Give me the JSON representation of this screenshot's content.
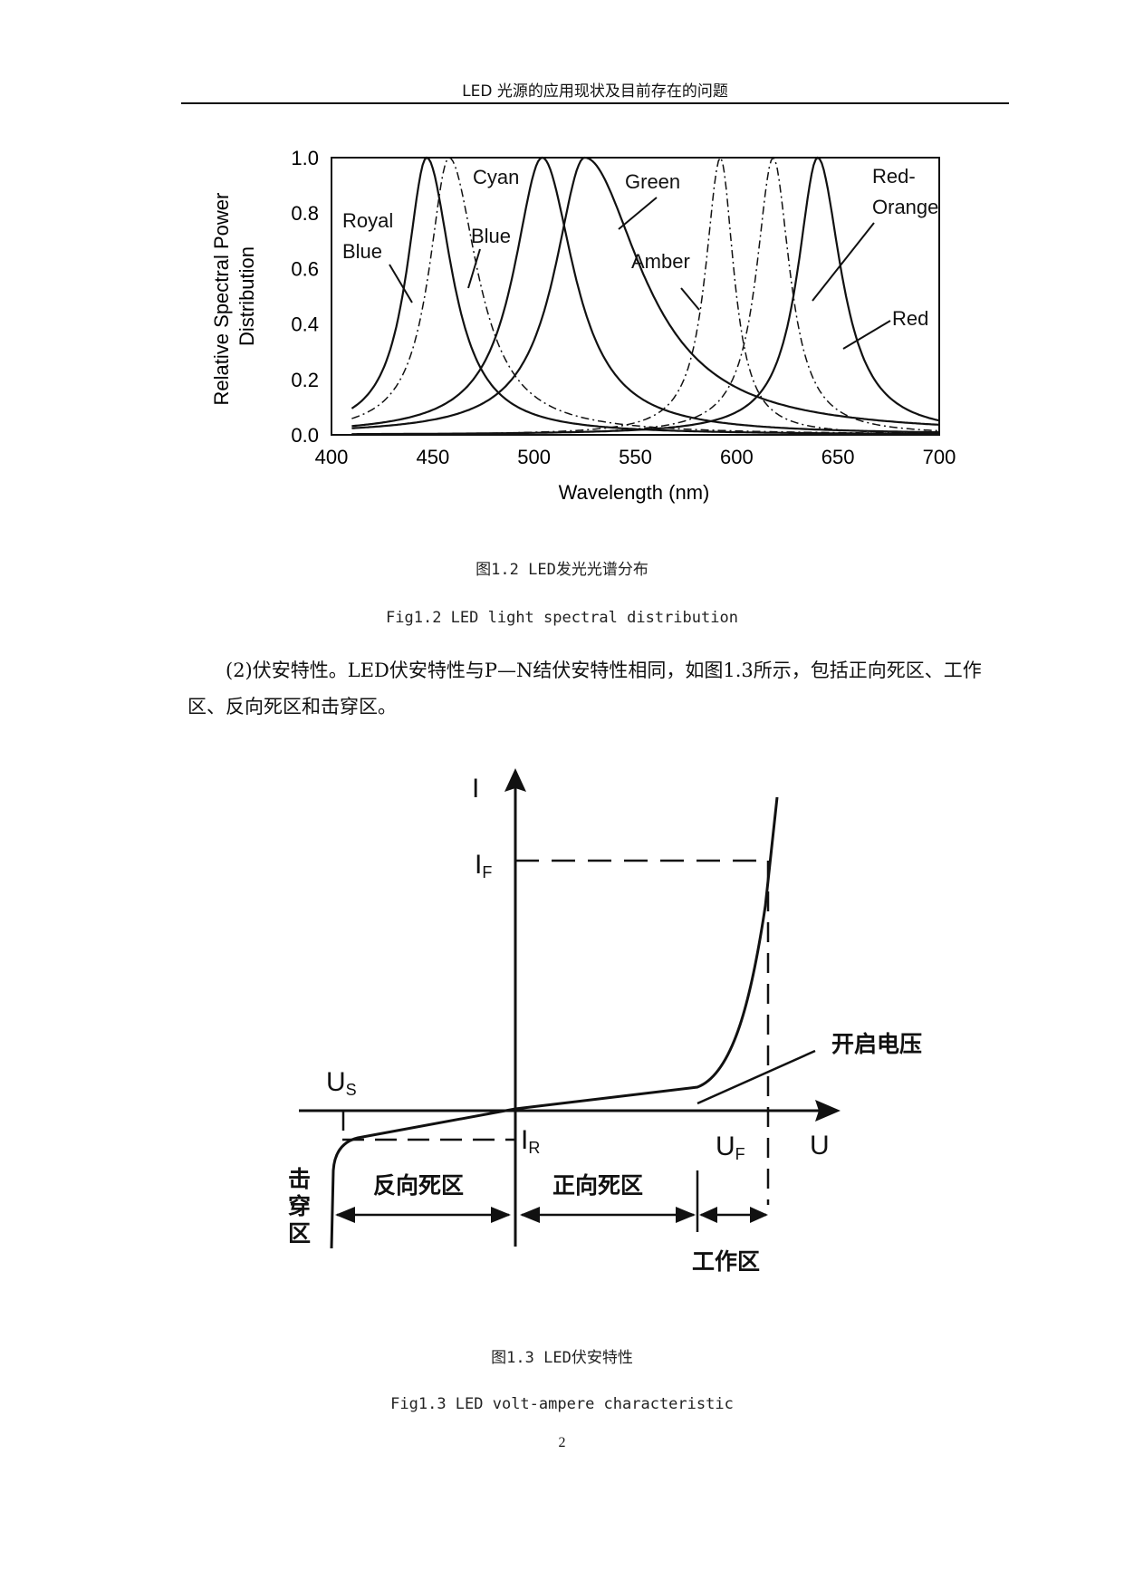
{
  "header": {
    "title": "LED 光源的应用现状及目前存在的问题"
  },
  "figure1": {
    "caption_cn": "图1.2 LED发光光谱分布",
    "caption_en": "Fig1.2 LED light spectral distribution"
  },
  "chart_data": {
    "type": "line",
    "ylabel": "Relative Spectral Power Distribution",
    "xlabel": "Wavelength (nm)",
    "xlim": [
      400,
      700
    ],
    "ylim": [
      0,
      1
    ],
    "x_ticks": [
      "400",
      "450",
      "500",
      "550",
      "600",
      "650",
      "700"
    ],
    "y_ticks": [
      "0.0",
      "0.2",
      "0.4",
      "0.6",
      "0.8",
      "1.0"
    ],
    "series": [
      {
        "name": "Royal Blue",
        "peak": 447,
        "hw_left": 12,
        "hw_right": 15,
        "style": "solid"
      },
      {
        "name": "Blue",
        "peak": 458,
        "hw_left": 12,
        "hw_right": 17,
        "style": "dashdot"
      },
      {
        "name": "Cyan",
        "peak": 504,
        "hw_left": 17,
        "hw_right": 19,
        "style": "solid"
      },
      {
        "name": "Green",
        "peak": 525,
        "hw_left": 18,
        "hw_right": 34,
        "style": "solid"
      },
      {
        "name": "Amber",
        "peak": 592,
        "hw_left": 9,
        "hw_right": 8,
        "style": "dashdot"
      },
      {
        "name": "Red-Orange",
        "peak": 618,
        "hw_left": 10,
        "hw_right": 10,
        "style": "dashdot"
      },
      {
        "name": "Red",
        "peak": 640,
        "hw_left": 12,
        "hw_right": 14,
        "style": "solid"
      }
    ],
    "labels": [
      "Royal\nBlue",
      "Blue",
      "Cyan",
      "Green",
      "Amber",
      "Red-\nOrange",
      "Red"
    ]
  },
  "paragraph": "(2)伏安特性。LED伏安特性与P—N结伏安特性相同，如图1.3所示，包括正向死区、工作区、反向死区和击穿区。",
  "figure2": {
    "axis_i": "I",
    "axis_u": "U",
    "i_f": "I",
    "i_f_sub": "F",
    "u_s": "U",
    "u_s_sub": "S",
    "i_r": "I",
    "i_r_sub": "R",
    "u_f": "U",
    "u_f_sub": "F",
    "turn_on_voltage": "开启电压",
    "reverse_dead_zone": "反向死区",
    "forward_dead_zone": "正向死区",
    "breakdown_zone": "击穿区",
    "working_zone": "工作区",
    "caption_cn": "图1.3 LED伏安特性",
    "caption_en": "Fig1.3 LED volt-ampere characteristic"
  },
  "page_number": "2"
}
